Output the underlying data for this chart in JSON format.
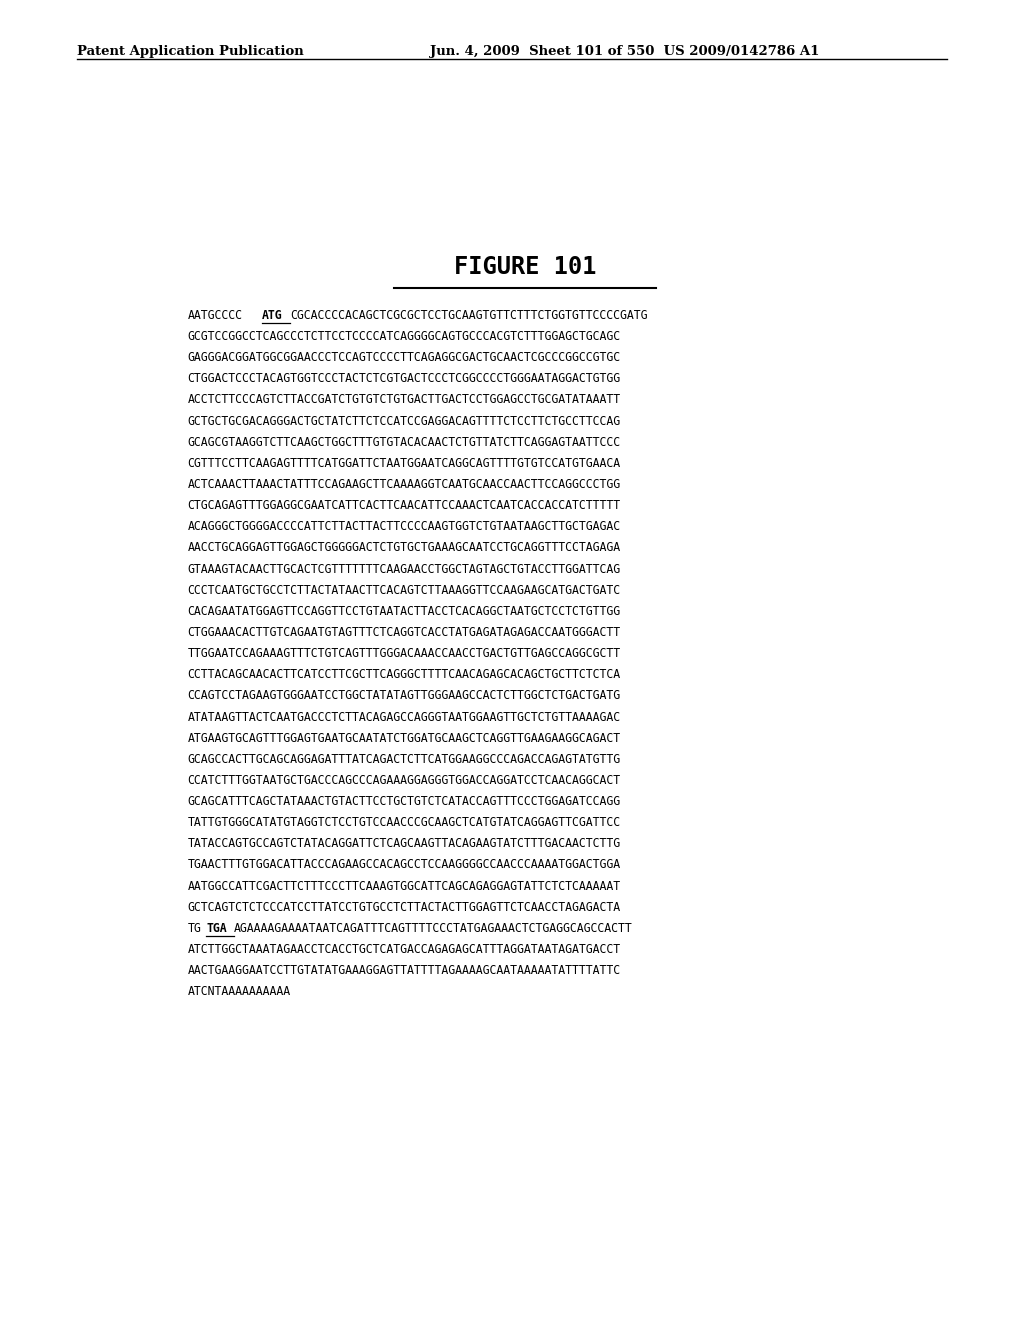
{
  "header_left": "Patent Application Publication",
  "header_right": "Jun. 4, 2009  Sheet 101 of 550  US 2009/0142786 A1",
  "title": "FIGURE 101",
  "lines": [
    "AATGCCCCATGCGCACCCCACAGCTCGCGCTCCTGCAAGTGTTCTTTCTGGTGTTCCCCGATG",
    "GCGTCCGGCCTCAGCCCTCTTCCTCCCCATCAGGGGCAGTGCCCACGTCTTTGGAGCTGCAGC",
    "GAGGGACGGATGGCGGAACCCTCCAGTCCCCTTCAGAGGCGACTGCAACTCGCCCGGCCGTGC",
    "CTGGACTCCCTACAGTGGTCCCTACTCTCGTGACTCCCTCGGCCCCTGGGAATAGGACTGTGG",
    "ACCTCTTCCCAGTCTTACCGATCTGTGTCTGTGACTTGACTCCTGGAGCCTGCGATATAAATT",
    "GCTGCTGCGACAGGGACTGCTATCTTCTCCATCCGAGGACAGTTTTCTCCTTCTGCCTTCCAG",
    "GCAGCGTAAGGTCTTCAAGCTGGCTTTGTGTACACAACTCTGTTATCTTCAGGAGTAATTCCC",
    "CGTTTCCTTCAAGAGTTTTCATGGATTCTAATGGAATCAGGCAGTTTTGTGTCCATGTGAACA",
    "ACTCAAACTTAAACTATTTCCAGAAGCTTCAAAAGGTCAATGCAACCAACTTCCAGGCCCTGG",
    "CTGCAGAGTTTGGAGGCGAATCATTCACTTCAACATTCCAAACTCAATCACCACCATCTTTTT",
    "ACAGGGCTGGGGACCCCATTCTTACTTACTTCCCCAAGTGGTCTGTAATAAGCTTGCTGAGAC",
    "AACCTGCAGGAGTTGGAGCTGGGGGACTCTGTGCTGAAAGCAATCCTGCAGGTTTCCTAGAGA",
    "GTAAAGTACAACTTGCACTCGTTTTTTTCAAGAACCTGGCTAGTAGCTGTACCTTGGATTCAG",
    "CCCTCAATGCTGCCTCTTACTATAACTTCACAGTCTTAAAGGTTCCAAGAAGCATGACTGATC",
    "CACAGAATATGGAGTTCCAGGTTCCTGTAATACTTACCTCACAGGCTAATGCTCCTCTGTTGG",
    "CTGGAAACACTTGTCAGAATGTAGTTTCTCAGGTCACCTATGAGATAGAGACCAATGGGACTT",
    "TTGGAATCCAGAAAGTTTCTGTCAGTTTGGGACAAACCAACCTGACTGTTGAGCCAGGCGCTT",
    "CCTTACAGCAACACTTCATCCTTCGCTTCAGGGCTTTTCAACAGAGCACAGCTGCTTCTCTCA",
    "CCAGTCCTAGAAGTGGGAATCCTGGCTATATAGTTGGGAAGCCACTCTTGGCTCTGACTGATG",
    "ATATAAGTTACTCAATGACCCTCTTACAGAGCCAGGGTAATGGAAGTTGCTCTGTTAAAAGAC",
    "ATGAAGTGCAGTTTGGAGTGAATGCAATATCTGGATGCAAGCTCAGGTTGAAGAAGGCAGACT",
    "GCAGCCACTTGCAGCAGGAGATTTATCAGACTCTTCATGGAAGGCCCAGACCAGAGTATGTTG",
    "CCATCTTTGGTAATGCTGACCCAGCCCAGAAAGGAGGGTGGACCAGGATCCTCAACAGGCACT",
    "GCAGCATTTCAGCTATAAACTGTACTTCCTGCTGTCTCATACCAGTTTCCCTGGAGATCCAGG",
    "TATTGTGGGCATATGTAGGTCTCCTGTCCAACCCGCAAGCTCATGTATCAGGAGTTCGATTCC",
    "TATACCAGTGCCAGTCTATACAGGATTCTCAGCAAGTTACAGAAGTATCTTTGACAACTCTTG",
    "TGAACTTTGTGGACATTACCCAGAAGCCACAGCCTCCAAGGGGCCAACCCAAAATGGACTGGA",
    "AATGGCCATTCGACTTCTTTCCCTTCAAAGTGGCATTCAGCAGAGGAGTATTCTCTCAAAAAT",
    "GCTCAGTCTCTCCCATCCTTATCCTGTGCCTCTTACTACTTGGAGTTCTCAACCTAGAGACTA",
    "TGTGAAGAAAAGAAAATAATCAGATTTCAGTTTTCCCTATGAGAAACTCTGAGGCAGCCACTT",
    "ATCTTGGCTAAATAGAACCTCACCTGCTCATGACCAGAGAGCATTTAGGATAATAGATGACCT",
    "AACTGAAGGAATCCTTGTATATGAAAGGAGTTATTTTAGAAAAGCAATAAAAATATTTTATTC",
    "ATCNTAAAAAAAAAA"
  ],
  "atg_line": 0,
  "atg_prefix": "AATGCCCC",
  "atg_bold": "ATG",
  "atg_suffix": "CGCACCCCACAGCTCGCGCTCCTGCAAGTGTTCTTTCTGGTGTTCCCCGATG",
  "tga_line": 29,
  "tga_prefix": "TG",
  "tga_bold": "TGA",
  "tga_suffix": "AGAAAAGAAAATAATCAGATTTCAGTTTTCCCTATGAGAAACTCTGAGGCAGCCACTT"
}
